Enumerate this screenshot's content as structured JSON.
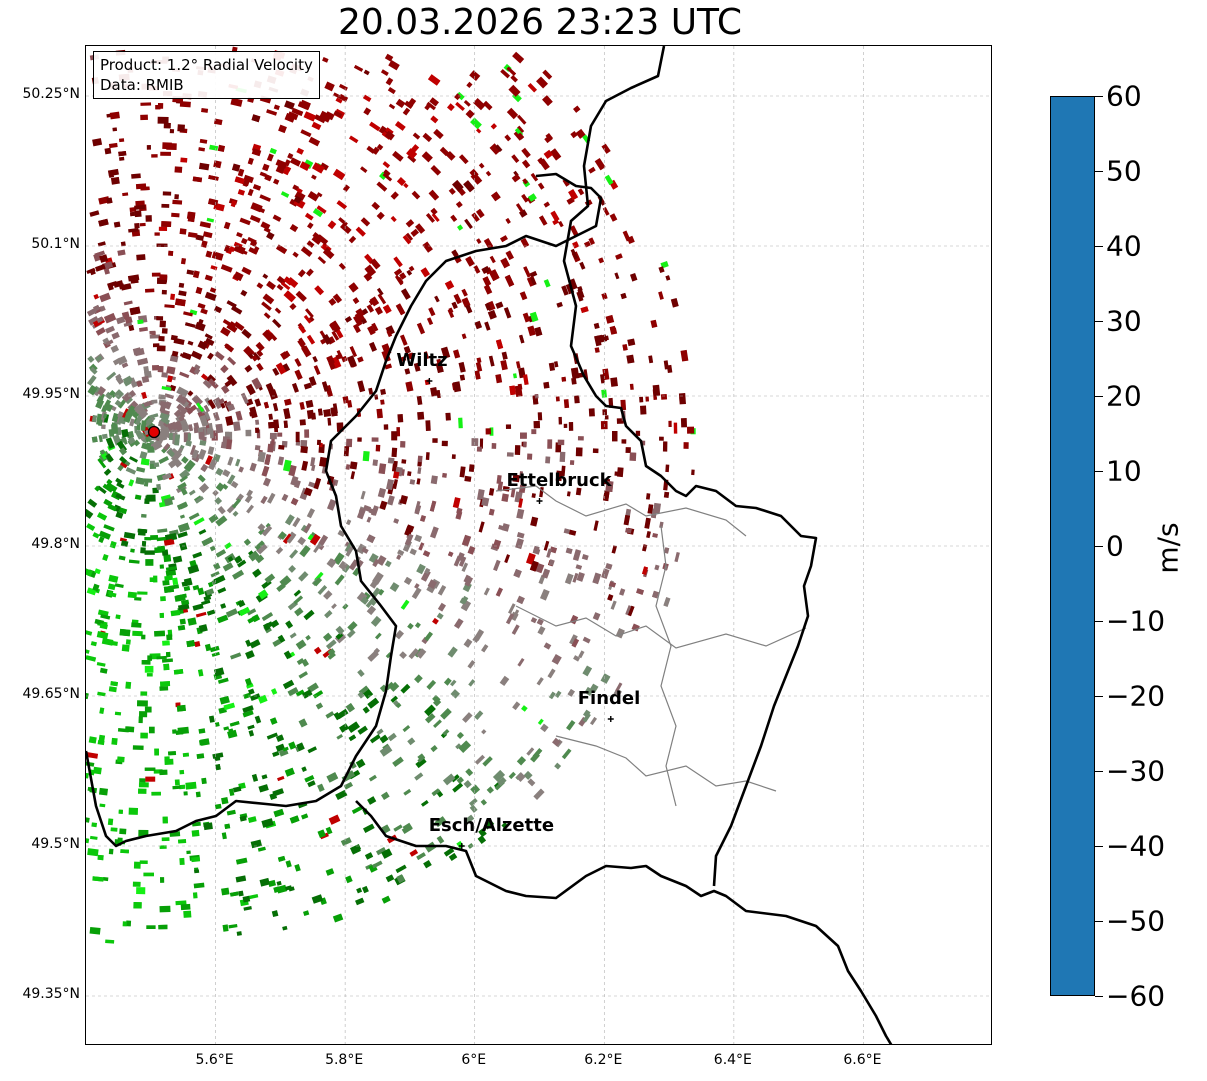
{
  "title": "20.03.2026 23:23 UTC",
  "info": {
    "product": "Product: 1.2° Radial Velocity",
    "source": "Data: RMIB"
  },
  "map": {
    "lon_range": [
      5.4,
      6.8
    ],
    "lat_range": [
      49.3,
      50.3
    ],
    "lat_ticks": [
      {
        "value": 50.25,
        "label": "50.25°N"
      },
      {
        "value": 50.1,
        "label": "50.1°N"
      },
      {
        "value": 49.95,
        "label": "49.95°N"
      },
      {
        "value": 49.8,
        "label": "49.8°N"
      },
      {
        "value": 49.65,
        "label": "49.65°N"
      },
      {
        "value": 49.5,
        "label": "49.5°N"
      },
      {
        "value": 49.35,
        "label": "49.35°N"
      }
    ],
    "lon_ticks": [
      {
        "value": 5.6,
        "label": "5.6°E"
      },
      {
        "value": 5.8,
        "label": "5.8°E"
      },
      {
        "value": 6.0,
        "label": "6°E"
      },
      {
        "value": 6.2,
        "label": "6.2°E"
      },
      {
        "value": 6.4,
        "label": "6.4°E"
      },
      {
        "value": 6.6,
        "label": "6.6°E"
      }
    ],
    "radar_site": {
      "lon": 5.505,
      "lat": 49.914
    },
    "cities": [
      {
        "name": "Wiltz",
        "lon": 5.93,
        "lat": 49.965
      },
      {
        "name": "Ettelbruck",
        "lon": 6.1,
        "lat": 49.845
      },
      {
        "name": "Findel",
        "lon": 6.21,
        "lat": 49.627
      },
      {
        "name": "Esch/Alzette",
        "lon": 5.98,
        "lat": 49.5
      }
    ]
  },
  "colorbar": {
    "unit": "m/s",
    "min": -60,
    "max": 60,
    "ticks": [
      {
        "value": 60,
        "label": "60"
      },
      {
        "value": 50,
        "label": "50"
      },
      {
        "value": 40,
        "label": "40"
      },
      {
        "value": 30,
        "label": "30"
      },
      {
        "value": 20,
        "label": "20"
      },
      {
        "value": 10,
        "label": "10"
      },
      {
        "value": 0,
        "label": "0"
      },
      {
        "value": -10,
        "label": "−10"
      },
      {
        "value": -20,
        "label": "−20"
      },
      {
        "value": -30,
        "label": "−30"
      },
      {
        "value": -40,
        "label": "−40"
      },
      {
        "value": -50,
        "label": "−50"
      },
      {
        "value": -60,
        "label": "−60"
      }
    ],
    "stops": [
      {
        "v": -60,
        "c": "#1f77b4"
      },
      {
        "v": -54,
        "c": "#1ea7d4"
      },
      {
        "v": -50,
        "c": "#2bd5e0"
      },
      {
        "v": -44,
        "c": "#6fe4e4"
      },
      {
        "v": -40,
        "c": "#a3ece8"
      },
      {
        "v": -37,
        "c": "#c3f2ee"
      },
      {
        "v": -34,
        "c": "#8ff0a8"
      },
      {
        "v": -30,
        "c": "#37f54a"
      },
      {
        "v": -26,
        "c": "#15f015"
      },
      {
        "v": -20,
        "c": "#0bc80b"
      },
      {
        "v": -14,
        "c": "#07a007"
      },
      {
        "v": -10,
        "c": "#056f05"
      },
      {
        "v": -6,
        "c": "#4f8a4f"
      },
      {
        "v": -2,
        "c": "#6f8c6f"
      },
      {
        "v": 0,
        "c": "#8a807e"
      },
      {
        "v": 3,
        "c": "#8a6a6e"
      },
      {
        "v": 7,
        "c": "#8a4f55"
      },
      {
        "v": 9,
        "c": "#6e0000"
      },
      {
        "v": 14,
        "c": "#8f0000"
      },
      {
        "v": 20,
        "c": "#c00000"
      },
      {
        "v": 27,
        "c": "#f50a0a"
      },
      {
        "v": 29,
        "c": "#ff3050"
      },
      {
        "v": 34,
        "c": "#ff5a72"
      },
      {
        "v": 40,
        "c": "#ff86c4"
      },
      {
        "v": 44,
        "c": "#ffb0c0"
      },
      {
        "v": 48,
        "c": "#ffd89a"
      },
      {
        "v": 52,
        "c": "#ffe090"
      },
      {
        "v": 56,
        "c": "#ffb870"
      },
      {
        "v": 60,
        "c": "#ff9a50"
      }
    ]
  }
}
